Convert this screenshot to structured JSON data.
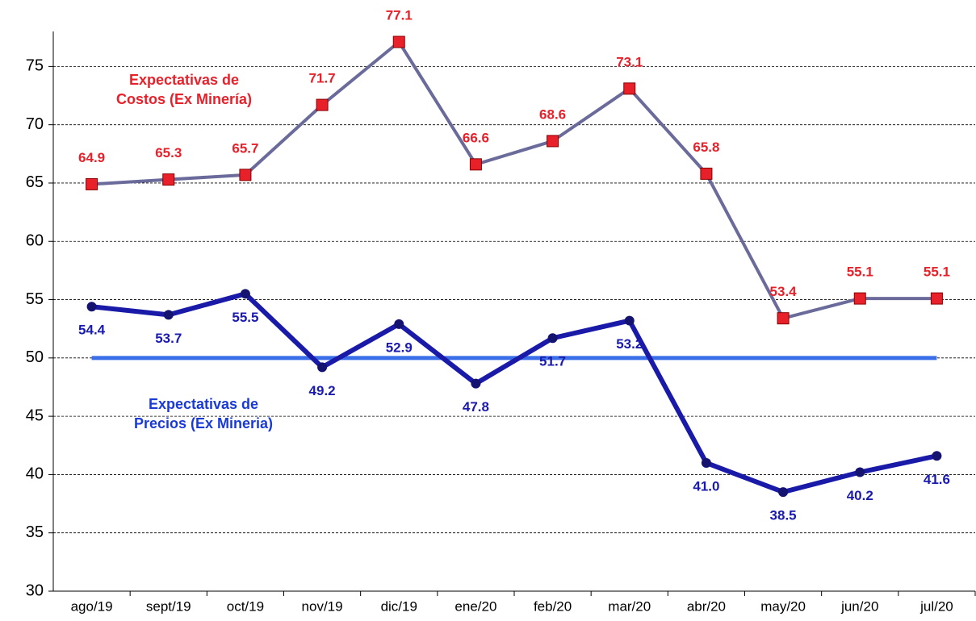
{
  "chart_data": {
    "type": "line",
    "categories": [
      "ago/19",
      "sept/19",
      "oct/19",
      "nov/19",
      "dic/19",
      "ene/20",
      "feb/20",
      "mar/20",
      "abr/20",
      "may/20",
      "jun/20",
      "jul/20"
    ],
    "series": [
      {
        "name": "Expectativas de Costos (Ex Minería)",
        "color": "#6b6b9b",
        "marker_color": "#e8202a",
        "marker": "square",
        "label_color": "#e8202a",
        "values": [
          64.9,
          65.3,
          65.7,
          71.7,
          77.1,
          66.6,
          68.6,
          73.1,
          65.8,
          53.4,
          55.1,
          55.1
        ],
        "value_labels": [
          "64.9",
          "65.3",
          "65.7",
          "71.7",
          "77.1",
          "66.6",
          "68.6",
          "73.1",
          "65.8",
          "53.4",
          "55.1",
          "55.1"
        ]
      },
      {
        "name": "Expectativas de Precios (Ex Mineria)",
        "color": "#1a1aa8",
        "marker_color": "#141470",
        "marker": "circle",
        "label_color": "#1a1ab0",
        "values": [
          54.4,
          53.7,
          55.5,
          49.2,
          52.9,
          47.8,
          51.7,
          53.2,
          41.0,
          38.5,
          40.2,
          41.6
        ],
        "value_labels": [
          "54.4",
          "53.7",
          "55.5",
          "49.2",
          "52.9",
          "47.8",
          "51.7",
          "53.2",
          "41.0",
          "38.5",
          "40.2",
          "41.6"
        ]
      }
    ],
    "annotations": [
      {
        "lines": [
          "Expectativas de",
          "Costos (Ex Minería)"
        ],
        "color": "#e8202a"
      },
      {
        "lines": [
          "Expectativas de",
          "Precios (Ex Mineria)"
        ],
        "color": "#1a3ad8"
      }
    ],
    "reference_line": {
      "value": 50,
      "color": "#3a6ee8"
    },
    "ylim": [
      30,
      78
    ],
    "yticks": [
      30,
      35,
      40,
      45,
      50,
      55,
      60,
      65,
      70,
      75
    ],
    "grid": true
  }
}
